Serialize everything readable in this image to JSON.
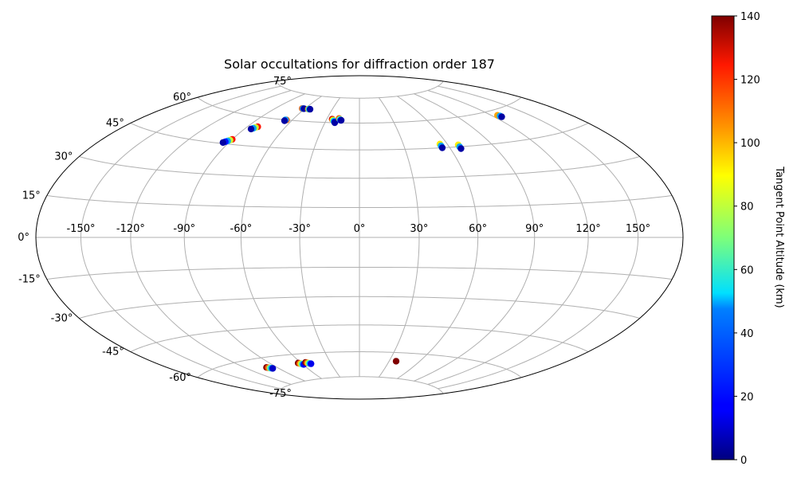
{
  "chart_data": {
    "type": "scatter",
    "projection": "hammer",
    "title": "Solar occultations for diffraction order 187",
    "grid": true,
    "lon_ticks": [
      -150,
      -120,
      -90,
      -60,
      -30,
      0,
      30,
      60,
      90,
      120,
      150
    ],
    "lon_tick_labels": [
      "-150°",
      "-120°",
      "-90°",
      "-60°",
      "-30°",
      "0°",
      "30°",
      "60°",
      "90°",
      "120°",
      "150°"
    ],
    "lat_ticks": [
      -75,
      -60,
      -45,
      -30,
      -15,
      0,
      15,
      30,
      45,
      60,
      75
    ],
    "lat_tick_labels": [
      "-75°",
      "-60°",
      "-45°",
      "-30°",
      "-15°",
      "0°",
      "15°",
      "30°",
      "45°",
      "60°",
      "75°"
    ],
    "colorbar": {
      "label": "Tangent Point Altitude (km)",
      "range": [
        0,
        140
      ],
      "ticks": [
        0,
        20,
        40,
        60,
        80,
        100,
        120,
        140
      ],
      "tick_labels": [
        "0",
        "20",
        "40",
        "60",
        "80",
        "100",
        "120",
        "140"
      ],
      "colormap": "jet"
    },
    "series": [
      {
        "points": [
          {
            "lon": -63,
            "lat": 67,
            "alt": 110
          },
          {
            "lon": -62,
            "lat": 67,
            "alt": 40
          },
          {
            "lon": -61,
            "lat": 67,
            "alt": 5
          }
        ]
      },
      {
        "points": [
          {
            "lon": -56,
            "lat": 67,
            "alt": 100
          },
          {
            "lon": -55,
            "lat": 67,
            "alt": 50
          },
          {
            "lon": -54,
            "lat": 67,
            "alt": 5
          }
        ]
      },
      {
        "points": [
          {
            "lon": -65,
            "lat": 60,
            "alt": 110
          },
          {
            "lon": -66,
            "lat": 60,
            "alt": 40
          },
          {
            "lon": -66,
            "lat": 59.5,
            "alt": 5
          }
        ]
      },
      {
        "points": [
          {
            "lon": -25,
            "lat": 62,
            "alt": 130
          },
          {
            "lon": -24,
            "lat": 61.5,
            "alt": 90
          },
          {
            "lon": -23,
            "lat": 61,
            "alt": 50
          },
          {
            "lon": -22,
            "lat": 60.5,
            "alt": 20
          },
          {
            "lon": -21.5,
            "lat": 60,
            "alt": 5
          }
        ]
      },
      {
        "points": [
          {
            "lon": -19,
            "lat": 62.5,
            "alt": 110
          },
          {
            "lon": -18,
            "lat": 62,
            "alt": 60
          },
          {
            "lon": -17,
            "lat": 61.5,
            "alt": 20
          },
          {
            "lon": -16.5,
            "lat": 61.5,
            "alt": 5
          }
        ]
      },
      {
        "points": [
          {
            "lon": -82,
            "lat": 55,
            "alt": 120
          },
          {
            "lon": -83,
            "lat": 54.5,
            "alt": 80
          },
          {
            "lon": -84,
            "lat": 54,
            "alt": 40
          },
          {
            "lon": -85,
            "lat": 53.5,
            "alt": 5
          }
        ]
      },
      {
        "points": [
          {
            "lon": -90,
            "lat": 47.5,
            "alt": 120
          },
          {
            "lon": -91,
            "lat": 47,
            "alt": 80
          },
          {
            "lon": -92,
            "lat": 46.5,
            "alt": 40
          },
          {
            "lon": -93,
            "lat": 46,
            "alt": 20
          },
          {
            "lon": -94,
            "lat": 45.5,
            "alt": 5
          }
        ]
      },
      {
        "points": [
          {
            "lon": 55,
            "lat": 47,
            "alt": 90
          },
          {
            "lon": 55,
            "lat": 46,
            "alt": 40
          },
          {
            "lon": 55,
            "lat": 45,
            "alt": 5
          }
        ]
      },
      {
        "points": [
          {
            "lon": 67,
            "lat": 46,
            "alt": 90
          },
          {
            "lon": 67,
            "lat": 45,
            "alt": 40
          },
          {
            "lon": 67,
            "lat": 44,
            "alt": 5
          }
        ]
      },
      {
        "points": [
          {
            "lon": 125,
            "lat": 57.5,
            "alt": 100
          },
          {
            "lon": 126,
            "lat": 57,
            "alt": 40
          },
          {
            "lon": 126,
            "lat": 56.5,
            "alt": 5
          }
        ]
      },
      {
        "points": [
          {
            "lon": -100,
            "lat": -65,
            "alt": 140
          },
          {
            "lon": -99,
            "lat": -65.3,
            "alt": 110
          },
          {
            "lon": -98,
            "lat": -65.6,
            "alt": 70
          },
          {
            "lon": -97,
            "lat": -65.8,
            "alt": 40
          },
          {
            "lon": -96,
            "lat": -66,
            "alt": 10
          }
        ]
      },
      {
        "points": [
          {
            "lon": -63,
            "lat": -65,
            "alt": 140
          },
          {
            "lon": -62,
            "lat": -65.3,
            "alt": 110
          },
          {
            "lon": -61,
            "lat": -65.5,
            "alt": 80
          },
          {
            "lon": -60,
            "lat": -65.8,
            "alt": 45
          },
          {
            "lon": -59,
            "lat": -66,
            "alt": 15
          }
        ]
      },
      {
        "points": [
          {
            "lon": -55,
            "lat": -65,
            "alt": 140
          },
          {
            "lon": -54,
            "lat": -65.3,
            "alt": 110
          },
          {
            "lon": -53,
            "lat": -65.5,
            "alt": 80
          },
          {
            "lon": -52,
            "lat": -65.8,
            "alt": 45
          },
          {
            "lon": -51,
            "lat": -66,
            "alt": 15
          }
        ]
      },
      {
        "points": [
          {
            "lon": 37,
            "lat": -65,
            "alt": 140
          }
        ]
      }
    ]
  }
}
